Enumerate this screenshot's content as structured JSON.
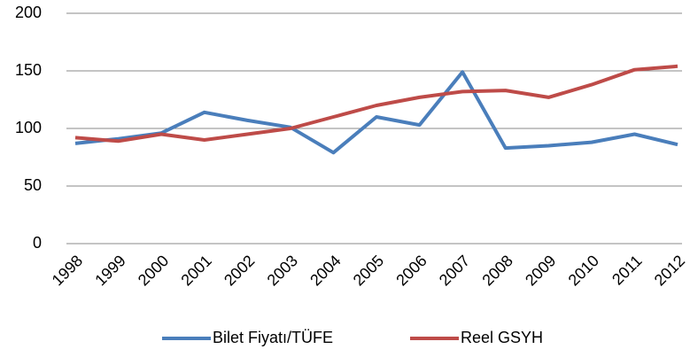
{
  "chart_data": {
    "type": "line",
    "categories": [
      "1998",
      "1999",
      "2000",
      "2001",
      "2002",
      "2003",
      "2004",
      "2005",
      "2006",
      "2007",
      "2008",
      "2009",
      "2010",
      "2011",
      "2012"
    ],
    "series": [
      {
        "name": "Bilet Fiyatı/TÜFE",
        "color": "#4a7ebb",
        "values": [
          87,
          91,
          96,
          114,
          107,
          101,
          79,
          110,
          103,
          149,
          83,
          85,
          88,
          95,
          86
        ]
      },
      {
        "name": "Reel GSYH",
        "color": "#be4b48",
        "values": [
          92,
          89,
          95,
          90,
          95,
          100,
          110,
          120,
          127,
          132,
          133,
          127,
          138,
          151,
          154
        ]
      }
    ],
    "ylim": [
      0,
      200
    ],
    "yticks": [
      0,
      50,
      100,
      150,
      200
    ],
    "grid": true,
    "legend": "bottom"
  }
}
